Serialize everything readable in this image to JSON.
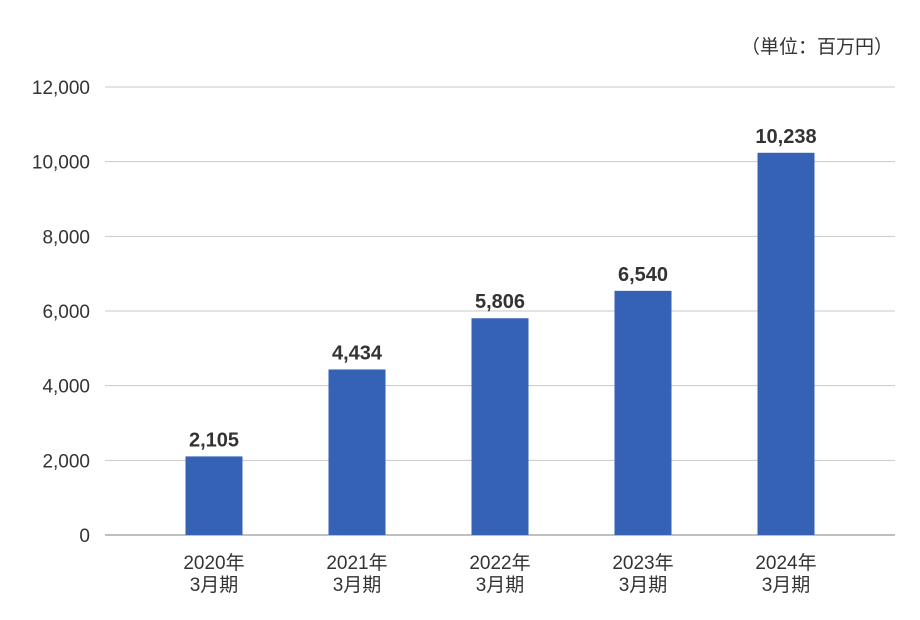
{
  "chart_data": {
    "type": "bar",
    "unit_label": "（単位：百万円）",
    "categories": [
      [
        "2020年",
        "3月期"
      ],
      [
        "2021年",
        "3月期"
      ],
      [
        "2022年",
        "3月期"
      ],
      [
        "2023年",
        "3月期"
      ],
      [
        "2024年",
        "3月期"
      ]
    ],
    "values": [
      2105,
      4434,
      5806,
      6540,
      10238
    ],
    "value_labels": [
      "2,105",
      "4,434",
      "5,806",
      "6,540",
      "10,238"
    ],
    "ylim": [
      0,
      12000
    ],
    "yticks": [
      0,
      2000,
      4000,
      6000,
      8000,
      10000,
      12000
    ],
    "ytick_labels": [
      "0",
      "2,000",
      "4,000",
      "6,000",
      "8,000",
      "10,000",
      "12,000"
    ],
    "grid": true,
    "colors": {
      "bar": "#3662b5"
    }
  }
}
